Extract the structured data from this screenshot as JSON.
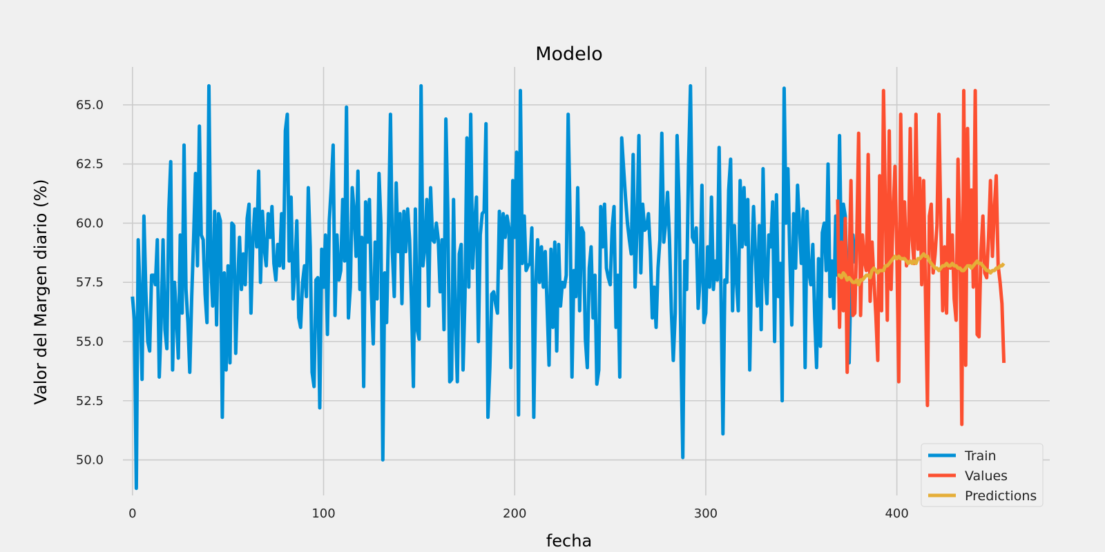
{
  "chart_data": {
    "type": "line",
    "title": "Modelo",
    "xlabel": "fecha",
    "ylabel": "Valor del Margen diario (%)",
    "xlim": [
      -5,
      480
    ],
    "ylim": [
      48.5,
      66.6
    ],
    "xticks": [
      0,
      100,
      200,
      300,
      400
    ],
    "xtick_labels": [
      "0",
      "100",
      "200",
      "300",
      "400"
    ],
    "yticks": [
      50.0,
      52.5,
      55.0,
      57.5,
      60.0,
      62.5,
      65.0
    ],
    "ytick_labels": [
      "50.0",
      "52.5",
      "55.0",
      "57.5",
      "60.0",
      "62.5",
      "65.0"
    ],
    "grid": true,
    "legend_position": "bottom-right",
    "colors": {
      "background": "#f0f0f0",
      "grid": "#cbcbcb",
      "Train": "#008fd5",
      "Values": "#fc4f30",
      "Predictions": "#e5ae38"
    },
    "series": [
      {
        "name": "Train",
        "x_start": 0,
        "values": [
          56.9,
          55.9,
          48.8,
          59.3,
          56.9,
          53.4,
          60.3,
          57.1,
          55.0,
          54.6,
          57.8,
          57.8,
          57.4,
          59.3,
          53.5,
          55.8,
          59.3,
          55.5,
          54.7,
          60.5,
          62.6,
          53.8,
          57.5,
          56.0,
          54.3,
          59.5,
          56.2,
          63.3,
          57.2,
          55.8,
          53.7,
          56.9,
          59.4,
          62.1,
          58.2,
          64.1,
          59.5,
          59.3,
          57.0,
          55.8,
          65.8,
          58.2,
          56.5,
          60.5,
          55.7,
          60.4,
          60.1,
          51.8,
          57.9,
          53.8,
          58.2,
          54.1,
          60.0,
          59.9,
          54.5,
          57.3,
          59.4,
          57.2,
          58.7,
          57.4,
          60.2,
          60.8,
          56.2,
          59.3,
          60.6,
          59.0,
          62.2,
          57.5,
          60.5,
          58.9,
          58.2,
          60.4,
          59.4,
          60.7,
          58.3,
          57.6,
          59.1,
          58.2,
          60.4,
          58.1,
          63.9,
          64.6,
          58.4,
          61.1,
          56.8,
          58.0,
          60.1,
          56.0,
          55.6,
          57.5,
          58.2,
          56.9,
          61.5,
          59.0,
          53.7,
          53.1,
          57.6,
          57.7,
          52.2,
          58.9,
          57.3,
          59.5,
          55.3,
          60.1,
          61.5,
          63.3,
          56.1,
          59.5,
          57.6,
          58.0,
          61.0,
          58.4,
          64.9,
          56.0,
          57.3,
          61.5,
          60.5,
          58.6,
          62.2,
          57.2,
          59.4,
          53.1,
          60.9,
          59.2,
          61.0,
          57.1,
          54.9,
          59.2,
          56.8,
          62.1,
          60.0,
          50.0,
          57.9,
          55.8,
          59.9,
          64.6,
          58.8,
          56.9,
          61.7,
          58.8,
          60.4,
          56.6,
          60.5,
          58.8,
          60.6,
          59.3,
          56.7,
          53.1,
          60.6,
          55.5,
          55.1,
          65.8,
          58.2,
          59.0,
          61.0,
          56.5,
          61.5,
          59.3,
          59.2,
          60.0,
          59.3,
          57.1,
          59.3,
          55.5,
          64.4,
          60.5,
          53.3,
          53.4,
          61.0,
          55.8,
          53.3,
          58.7,
          59.1,
          53.8,
          56.9,
          63.6,
          57.3,
          64.6,
          58.1,
          59.9,
          61.1,
          55.0,
          59.5,
          60.4,
          60.5,
          64.2,
          51.8,
          53.9,
          57.0,
          57.1,
          56.6,
          56.2,
          60.5,
          58.1,
          60.4,
          59.4,
          60.3,
          59.8,
          53.9,
          61.8,
          59.4,
          63.0,
          51.9,
          65.6,
          58.3,
          60.3,
          58.0,
          58.2,
          58.3,
          59.8,
          51.8,
          57.4,
          59.3,
          57.5,
          59.0,
          57.3,
          58.8,
          56.4,
          54.0,
          58.9,
          55.6,
          59.2,
          54.6,
          59.1,
          56.5,
          57.5,
          57.3,
          57.8,
          64.6,
          60.2,
          53.5,
          58.0,
          56.9,
          61.5,
          56.3,
          59.8,
          59.6,
          55.1,
          53.9,
          58.1,
          59.0,
          56.0,
          57.8,
          53.2,
          53.8,
          60.7,
          59.0,
          60.8,
          58.1,
          57.7,
          57.4,
          59.8,
          60.7,
          55.6,
          57.8,
          53.5,
          63.6,
          62.3,
          61.1,
          60.0,
          59.3,
          58.7,
          62.9,
          57.3,
          59.8,
          63.7,
          57.9,
          60.8,
          59.7,
          59.8,
          60.4,
          58.8,
          56.0,
          57.3,
          55.6,
          58.1,
          59.3,
          63.8,
          59.2,
          60.0,
          61.3,
          59.3,
          56.3,
          54.2,
          56.2,
          63.7,
          60.9,
          54.6,
          50.1,
          58.4,
          57.2,
          62.5,
          65.8,
          59.4,
          59.2,
          59.8,
          56.4,
          57.6,
          61.6,
          55.8,
          56.2,
          59.0,
          57.3,
          61.1,
          57.2,
          58.4,
          57.6,
          63.2,
          56.8,
          51.1,
          57.6,
          57.5,
          61.4,
          62.7,
          56.3,
          59.9,
          57.6,
          56.3,
          61.8,
          59.0,
          61.5,
          59.1,
          61.0,
          53.8,
          58.2,
          60.7,
          58.6,
          56.5,
          59.9,
          55.5,
          62.3,
          57.9,
          56.6,
          59.5,
          59.0,
          60.9,
          55.0,
          61.2,
          56.9,
          58.3,
          52.5,
          65.7,
          60.0,
          62.3,
          58.5,
          55.7,
          60.4,
          58.1,
          61.6,
          60.0,
          58.3,
          60.6,
          53.9,
          60.5,
          57.9,
          57.4,
          59.1,
          56.0,
          53.9,
          58.5,
          54.8,
          59.6,
          60.0,
          58.0,
          62.5,
          56.9,
          58.4,
          56.4,
          60.3,
          57.8,
          63.7,
          58.1,
          60.8,
          60.3,
          56.9,
          54.1,
          57.8,
          59.5,
          58.3
        ]
      },
      {
        "name": "Values",
        "x_start": 369,
        "values": [
          61.0,
          55.6,
          59.2,
          56.3,
          60.2,
          53.7,
          58.1,
          61.8,
          56.1,
          56.2,
          59.3,
          63.8,
          56.1,
          59.5,
          58.4,
          58.0,
          62.9,
          56.7,
          59.2,
          57.6,
          56.1,
          54.2,
          62.0,
          56.3,
          65.6,
          60.6,
          55.9,
          63.9,
          57.2,
          60.4,
          62.4,
          58.8,
          53.3,
          64.6,
          58.5,
          60.9,
          58.2,
          58.5,
          64.0,
          59.3,
          58.3,
          64.6,
          58.9,
          61.9,
          57.4,
          61.8,
          56.9,
          52.3,
          60.3,
          60.8,
          57.9,
          58.7,
          59.9,
          64.6,
          60.0,
          56.3,
          59.0,
          56.2,
          61.0,
          58.1,
          59.5,
          56.8,
          55.9,
          62.7,
          59.3,
          51.5,
          65.6,
          54.0,
          64.0,
          58.3,
          61.4,
          57.3,
          65.6,
          55.3,
          55.2,
          58.8,
          60.3,
          57.9,
          57.7,
          59.5,
          61.8,
          58.6,
          60.6,
          62.0,
          58.2,
          57.5,
          56.6,
          54.1
        ]
      },
      {
        "name": "Predictions",
        "x_start": 369,
        "values": [
          57.8,
          57.8,
          57.7,
          57.9,
          57.8,
          57.6,
          57.7,
          57.6,
          57.5,
          57.5,
          57.6,
          57.4,
          57.6,
          57.6,
          57.7,
          57.8,
          57.8,
          57.7,
          58.0,
          58.1,
          58.0,
          57.9,
          58.0,
          58.0,
          58.0,
          58.2,
          58.2,
          58.3,
          58.4,
          58.5,
          58.6,
          58.5,
          58.6,
          58.5,
          58.5,
          58.5,
          58.4,
          58.3,
          58.4,
          58.3,
          58.4,
          58.3,
          58.5,
          58.5,
          58.6,
          58.7,
          58.6,
          58.6,
          58.4,
          58.3,
          58.2,
          58.1,
          58.1,
          58.0,
          58.1,
          58.2,
          58.2,
          58.3,
          58.2,
          58.2,
          58.3,
          58.2,
          58.2,
          58.1,
          58.1,
          58.0,
          58.0,
          58.1,
          58.2,
          58.2,
          58.1,
          58.2,
          58.3,
          58.4,
          58.3,
          58.3,
          58.2,
          58.1,
          58.0,
          58.0,
          57.9,
          58.0,
          58.0,
          58.1,
          58.1,
          58.2,
          58.2,
          58.3
        ]
      }
    ]
  }
}
